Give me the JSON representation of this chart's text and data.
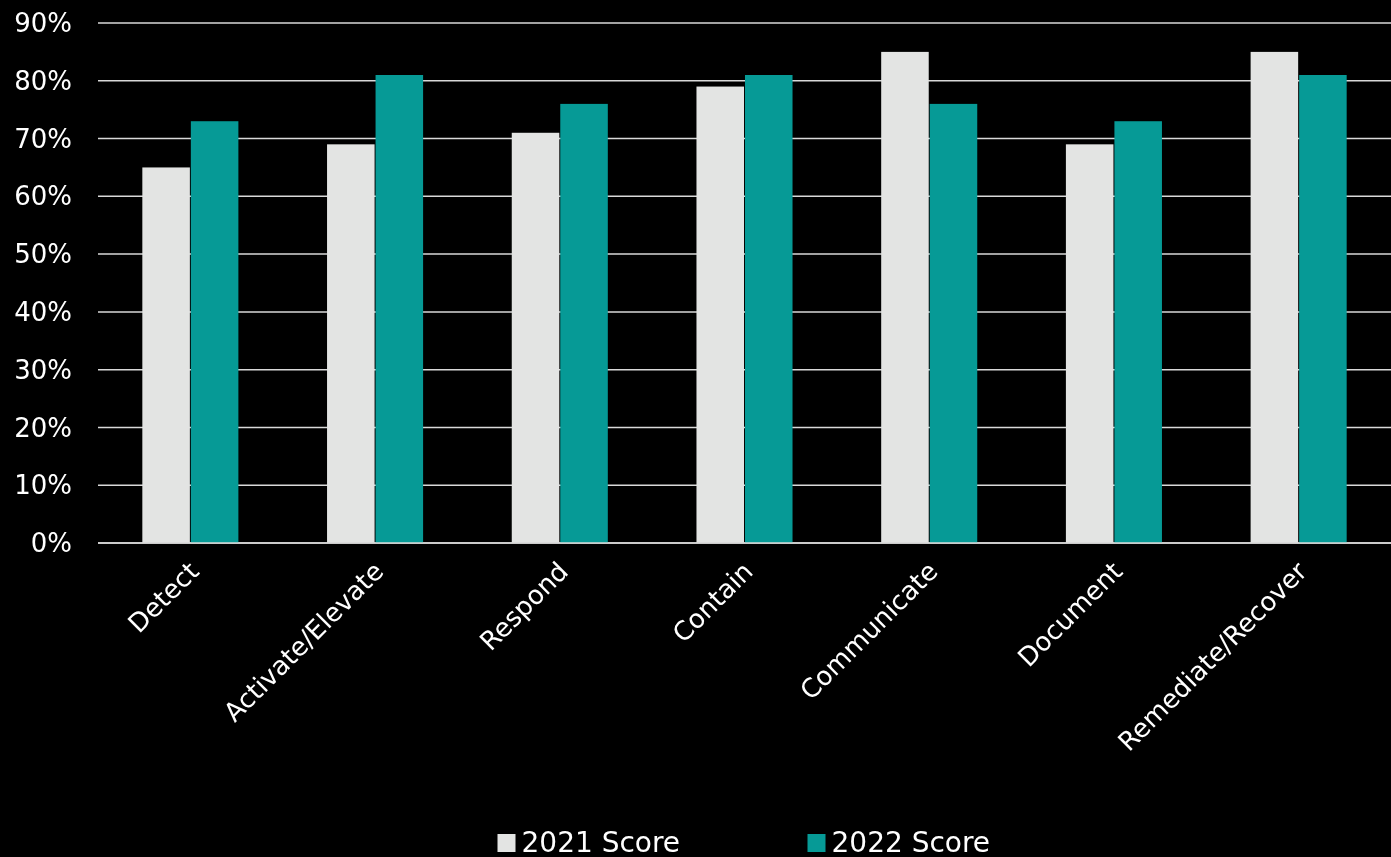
{
  "chart_data": {
    "type": "bar",
    "categories": [
      "Detect",
      "Activate/Elevate",
      "Respond",
      "Contain",
      "Communicate",
      "Document",
      "Remediate/Recover"
    ],
    "series": [
      {
        "name": "2021 Score",
        "color": "#e3e4e3",
        "values": [
          65,
          69,
          71,
          79,
          85,
          69,
          85
        ]
      },
      {
        "name": "2022 Score",
        "color": "#069a96",
        "values": [
          73,
          81,
          76,
          81,
          76,
          73,
          81
        ]
      }
    ],
    "ylim": [
      0,
      90
    ],
    "yticks": [
      {
        "value": 0,
        "label": "0%"
      },
      {
        "value": 10,
        "label": "10%"
      },
      {
        "value": 20,
        "label": "20%"
      },
      {
        "value": 30,
        "label": "30%"
      },
      {
        "value": 40,
        "label": "40%"
      },
      {
        "value": 50,
        "label": "50%"
      },
      {
        "value": 60,
        "label": "60%"
      },
      {
        "value": 70,
        "label": "70%"
      },
      {
        "value": 80,
        "label": "80%"
      },
      {
        "value": 90,
        "label": "90%"
      }
    ],
    "grid": "y",
    "legend": "bottom"
  }
}
